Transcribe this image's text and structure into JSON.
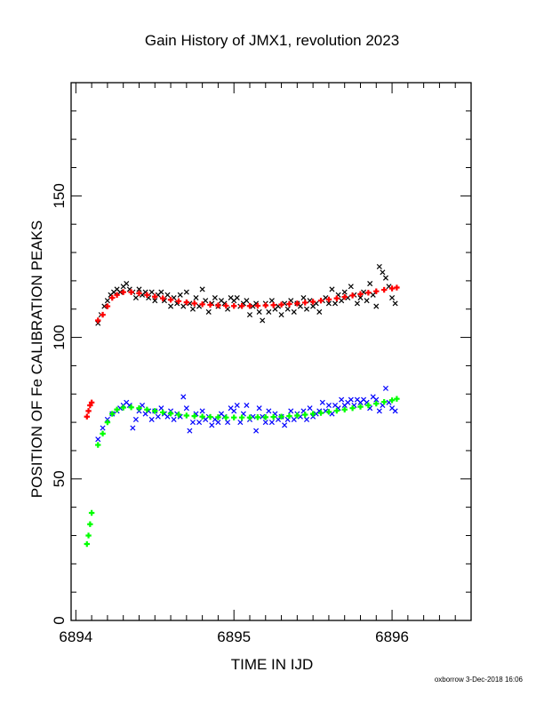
{
  "footer": "oxborrow 3-Dec-2018 16:06",
  "colors": {
    "data_upper": "#000000",
    "fit_upper": "#ff0000",
    "data_lower": "#0000ff",
    "fit_lower": "#00ff00",
    "axes": "#000000",
    "background": "#ffffff"
  },
  "chart_data": {
    "type": "scatter",
    "title": "Gain History of JMX1, revolution 2023",
    "xlabel": "TIME IN IJD",
    "ylabel": "POSITION OF Fe CALIBRATION PEAKS",
    "xlim": [
      6893.97,
      6896.5
    ],
    "ylim": [
      0,
      190
    ],
    "xticks": [
      6894,
      6895,
      6896
    ],
    "yticks": [
      0,
      50,
      100,
      150
    ],
    "grid": false,
    "legend": "none",
    "series": [
      {
        "marker": "x",
        "color": "#000000",
        "points": [
          [
            6894.14,
            105
          ],
          [
            6894.16,
            108
          ],
          [
            6894.18,
            111
          ],
          [
            6894.2,
            113
          ],
          [
            6894.22,
            115
          ],
          [
            6894.24,
            116
          ],
          [
            6894.26,
            117
          ],
          [
            6894.28,
            116
          ],
          [
            6894.3,
            118
          ],
          [
            6894.32,
            119
          ],
          [
            6894.34,
            117
          ],
          [
            6894.36,
            116
          ],
          [
            6894.38,
            114
          ],
          [
            6894.4,
            117
          ],
          [
            6894.42,
            115
          ],
          [
            6894.44,
            116
          ],
          [
            6894.46,
            114
          ],
          [
            6894.48,
            116
          ],
          [
            6894.5,
            113
          ],
          [
            6894.52,
            115
          ],
          [
            6894.54,
            116
          ],
          [
            6894.56,
            113
          ],
          [
            6894.58,
            115
          ],
          [
            6894.6,
            111
          ],
          [
            6894.62,
            114
          ],
          [
            6894.64,
            112
          ],
          [
            6894.66,
            115
          ],
          [
            6894.68,
            111
          ],
          [
            6894.7,
            116
          ],
          [
            6894.72,
            112
          ],
          [
            6894.74,
            110
          ],
          [
            6894.76,
            114
          ],
          [
            6894.78,
            111
          ],
          [
            6894.8,
            117
          ],
          [
            6894.82,
            113
          ],
          [
            6894.84,
            109
          ],
          [
            6894.86,
            112
          ],
          [
            6894.88,
            114
          ],
          [
            6894.9,
            111
          ],
          [
            6894.92,
            113
          ],
          [
            6894.94,
            112
          ],
          [
            6894.96,
            110
          ],
          [
            6894.98,
            114
          ],
          [
            6895.0,
            113
          ],
          [
            6895.02,
            114
          ],
          [
            6895.04,
            111
          ],
          [
            6895.06,
            112
          ],
          [
            6895.08,
            113
          ],
          [
            6895.1,
            108
          ],
          [
            6895.12,
            111
          ],
          [
            6895.14,
            112
          ],
          [
            6895.16,
            109
          ],
          [
            6895.18,
            106
          ],
          [
            6895.2,
            112
          ],
          [
            6895.22,
            109
          ],
          [
            6895.24,
            113
          ],
          [
            6895.26,
            110
          ],
          [
            6895.28,
            111
          ],
          [
            6895.3,
            108
          ],
          [
            6895.32,
            112
          ],
          [
            6895.34,
            110
          ],
          [
            6895.36,
            113
          ],
          [
            6895.38,
            109
          ],
          [
            6895.4,
            112
          ],
          [
            6895.42,
            111
          ],
          [
            6895.44,
            114
          ],
          [
            6895.46,
            110
          ],
          [
            6895.48,
            113
          ],
          [
            6895.5,
            111
          ],
          [
            6895.52,
            112
          ],
          [
            6895.54,
            109
          ],
          [
            6895.56,
            113
          ],
          [
            6895.58,
            114
          ],
          [
            6895.6,
            112
          ],
          [
            6895.62,
            117
          ],
          [
            6895.64,
            112
          ],
          [
            6895.66,
            115
          ],
          [
            6895.68,
            113
          ],
          [
            6895.7,
            116
          ],
          [
            6895.72,
            114
          ],
          [
            6895.74,
            118
          ],
          [
            6895.76,
            115
          ],
          [
            6895.78,
            112
          ],
          [
            6895.8,
            114
          ],
          [
            6895.82,
            116
          ],
          [
            6895.84,
            113
          ],
          [
            6895.86,
            119
          ],
          [
            6895.88,
            115
          ],
          [
            6895.9,
            111
          ],
          [
            6895.92,
            125
          ],
          [
            6895.94,
            123
          ],
          [
            6895.96,
            121
          ],
          [
            6895.98,
            118
          ],
          [
            6896.0,
            114
          ],
          [
            6896.02,
            112
          ]
        ]
      },
      {
        "marker": "+",
        "color": "#ff0000",
        "points": [
          [
            6894.07,
            72
          ],
          [
            6894.08,
            74
          ],
          [
            6894.09,
            76
          ],
          [
            6894.1,
            77
          ],
          [
            6894.14,
            106
          ],
          [
            6894.17,
            108
          ],
          [
            6894.2,
            111
          ],
          [
            6894.23,
            114
          ],
          [
            6894.26,
            115
          ],
          [
            6894.3,
            116
          ],
          [
            6894.35,
            116
          ],
          [
            6894.4,
            115.6
          ],
          [
            6894.45,
            115
          ],
          [
            6894.5,
            114.4
          ],
          [
            6894.55,
            113.8
          ],
          [
            6894.6,
            113.3
          ],
          [
            6894.65,
            112.8
          ],
          [
            6894.7,
            112.4
          ],
          [
            6894.75,
            112
          ],
          [
            6894.8,
            111.7
          ],
          [
            6894.85,
            111.5
          ],
          [
            6894.9,
            111.3
          ],
          [
            6894.95,
            111.2
          ],
          [
            6895.0,
            111.1
          ],
          [
            6895.05,
            111.1
          ],
          [
            6895.1,
            111.1
          ],
          [
            6895.15,
            111.2
          ],
          [
            6895.2,
            111.3
          ],
          [
            6895.25,
            111.4
          ],
          [
            6895.3,
            111.6
          ],
          [
            6895.35,
            111.8
          ],
          [
            6895.4,
            112
          ],
          [
            6895.45,
            112.3
          ],
          [
            6895.5,
            112.6
          ],
          [
            6895.55,
            113
          ],
          [
            6895.6,
            113.4
          ],
          [
            6895.65,
            113.8
          ],
          [
            6895.7,
            114.3
          ],
          [
            6895.75,
            114.8
          ],
          [
            6895.8,
            115.3
          ],
          [
            6895.85,
            115.8
          ],
          [
            6895.9,
            116.3
          ],
          [
            6895.95,
            116.8
          ],
          [
            6896.0,
            117.3
          ],
          [
            6896.03,
            117.6
          ]
        ]
      },
      {
        "marker": "x",
        "color": "#0000ff",
        "points": [
          [
            6894.14,
            64
          ],
          [
            6894.17,
            68
          ],
          [
            6894.2,
            71
          ],
          [
            6894.23,
            73
          ],
          [
            6894.26,
            74
          ],
          [
            6894.28,
            75
          ],
          [
            6894.3,
            76
          ],
          [
            6894.32,
            77
          ],
          [
            6894.34,
            76
          ],
          [
            6894.36,
            68
          ],
          [
            6894.38,
            71
          ],
          [
            6894.4,
            74
          ],
          [
            6894.42,
            76
          ],
          [
            6894.44,
            73
          ],
          [
            6894.46,
            74
          ],
          [
            6894.48,
            71
          ],
          [
            6894.5,
            74
          ],
          [
            6894.52,
            72
          ],
          [
            6894.54,
            75
          ],
          [
            6894.56,
            73
          ],
          [
            6894.58,
            72
          ],
          [
            6894.6,
            74
          ],
          [
            6894.62,
            71
          ],
          [
            6894.64,
            73
          ],
          [
            6894.66,
            72
          ],
          [
            6894.68,
            79
          ],
          [
            6894.7,
            75
          ],
          [
            6894.72,
            67
          ],
          [
            6894.74,
            70
          ],
          [
            6894.76,
            73
          ],
          [
            6894.78,
            70
          ],
          [
            6894.8,
            74
          ],
          [
            6894.82,
            71
          ],
          [
            6894.84,
            72
          ],
          [
            6894.86,
            69
          ],
          [
            6894.88,
            71
          ],
          [
            6894.9,
            70
          ],
          [
            6894.92,
            73
          ],
          [
            6894.94,
            72
          ],
          [
            6894.96,
            70
          ],
          [
            6894.98,
            75
          ],
          [
            6895.0,
            74
          ],
          [
            6895.02,
            76
          ],
          [
            6895.04,
            70
          ],
          [
            6895.06,
            73
          ],
          [
            6895.08,
            76
          ],
          [
            6895.1,
            71
          ],
          [
            6895.12,
            72
          ],
          [
            6895.14,
            67
          ],
          [
            6895.16,
            75
          ],
          [
            6895.18,
            72
          ],
          [
            6895.2,
            70
          ],
          [
            6895.22,
            74
          ],
          [
            6895.24,
            70
          ],
          [
            6895.26,
            73
          ],
          [
            6895.28,
            71
          ],
          [
            6895.3,
            72
          ],
          [
            6895.32,
            69
          ],
          [
            6895.34,
            71
          ],
          [
            6895.36,
            74
          ],
          [
            6895.38,
            71
          ],
          [
            6895.4,
            73
          ],
          [
            6895.42,
            72
          ],
          [
            6895.44,
            74
          ],
          [
            6895.46,
            71
          ],
          [
            6895.48,
            75
          ],
          [
            6895.5,
            72
          ],
          [
            6895.52,
            73
          ],
          [
            6895.54,
            74
          ],
          [
            6895.56,
            77
          ],
          [
            6895.58,
            74
          ],
          [
            6895.6,
            76
          ],
          [
            6895.62,
            73
          ],
          [
            6895.64,
            76
          ],
          [
            6895.66,
            75
          ],
          [
            6895.68,
            78
          ],
          [
            6895.7,
            76
          ],
          [
            6895.72,
            77
          ],
          [
            6895.74,
            78
          ],
          [
            6895.76,
            76
          ],
          [
            6895.78,
            78
          ],
          [
            6895.8,
            77
          ],
          [
            6895.82,
            78
          ],
          [
            6895.84,
            77
          ],
          [
            6895.86,
            75
          ],
          [
            6895.88,
            79
          ],
          [
            6895.9,
            78
          ],
          [
            6895.92,
            74
          ],
          [
            6895.94,
            76
          ],
          [
            6895.96,
            82
          ],
          [
            6895.98,
            77
          ],
          [
            6896.0,
            75
          ],
          [
            6896.02,
            74
          ]
        ]
      },
      {
        "marker": "+",
        "color": "#00ff00",
        "points": [
          [
            6894.07,
            27
          ],
          [
            6894.08,
            30
          ],
          [
            6894.09,
            34
          ],
          [
            6894.1,
            38
          ],
          [
            6894.14,
            62
          ],
          [
            6894.17,
            66
          ],
          [
            6894.2,
            70
          ],
          [
            6894.23,
            73
          ],
          [
            6894.26,
            74.5
          ],
          [
            6894.3,
            75.2
          ],
          [
            6894.35,
            75.3
          ],
          [
            6894.4,
            75
          ],
          [
            6894.45,
            74.5
          ],
          [
            6894.5,
            74
          ],
          [
            6894.55,
            73.5
          ],
          [
            6894.6,
            73.1
          ],
          [
            6894.65,
            72.7
          ],
          [
            6894.7,
            72.4
          ],
          [
            6894.75,
            72.2
          ],
          [
            6894.8,
            72
          ],
          [
            6894.85,
            71.9
          ],
          [
            6894.9,
            71.8
          ],
          [
            6894.95,
            71.7
          ],
          [
            6895.0,
            71.7
          ],
          [
            6895.05,
            71.7
          ],
          [
            6895.1,
            71.7
          ],
          [
            6895.15,
            71.8
          ],
          [
            6895.2,
            71.8
          ],
          [
            6895.25,
            71.9
          ],
          [
            6895.3,
            72
          ],
          [
            6895.35,
            72.2
          ],
          [
            6895.4,
            72.4
          ],
          [
            6895.45,
            72.7
          ],
          [
            6895.5,
            73
          ],
          [
            6895.55,
            73.3
          ],
          [
            6895.6,
            73.7
          ],
          [
            6895.65,
            74.1
          ],
          [
            6895.7,
            74.5
          ],
          [
            6895.75,
            75
          ],
          [
            6895.8,
            75.5
          ],
          [
            6895.85,
            76
          ],
          [
            6895.9,
            76.6
          ],
          [
            6895.95,
            77.2
          ],
          [
            6896.0,
            77.8
          ],
          [
            6896.03,
            78.3
          ]
        ]
      }
    ]
  }
}
